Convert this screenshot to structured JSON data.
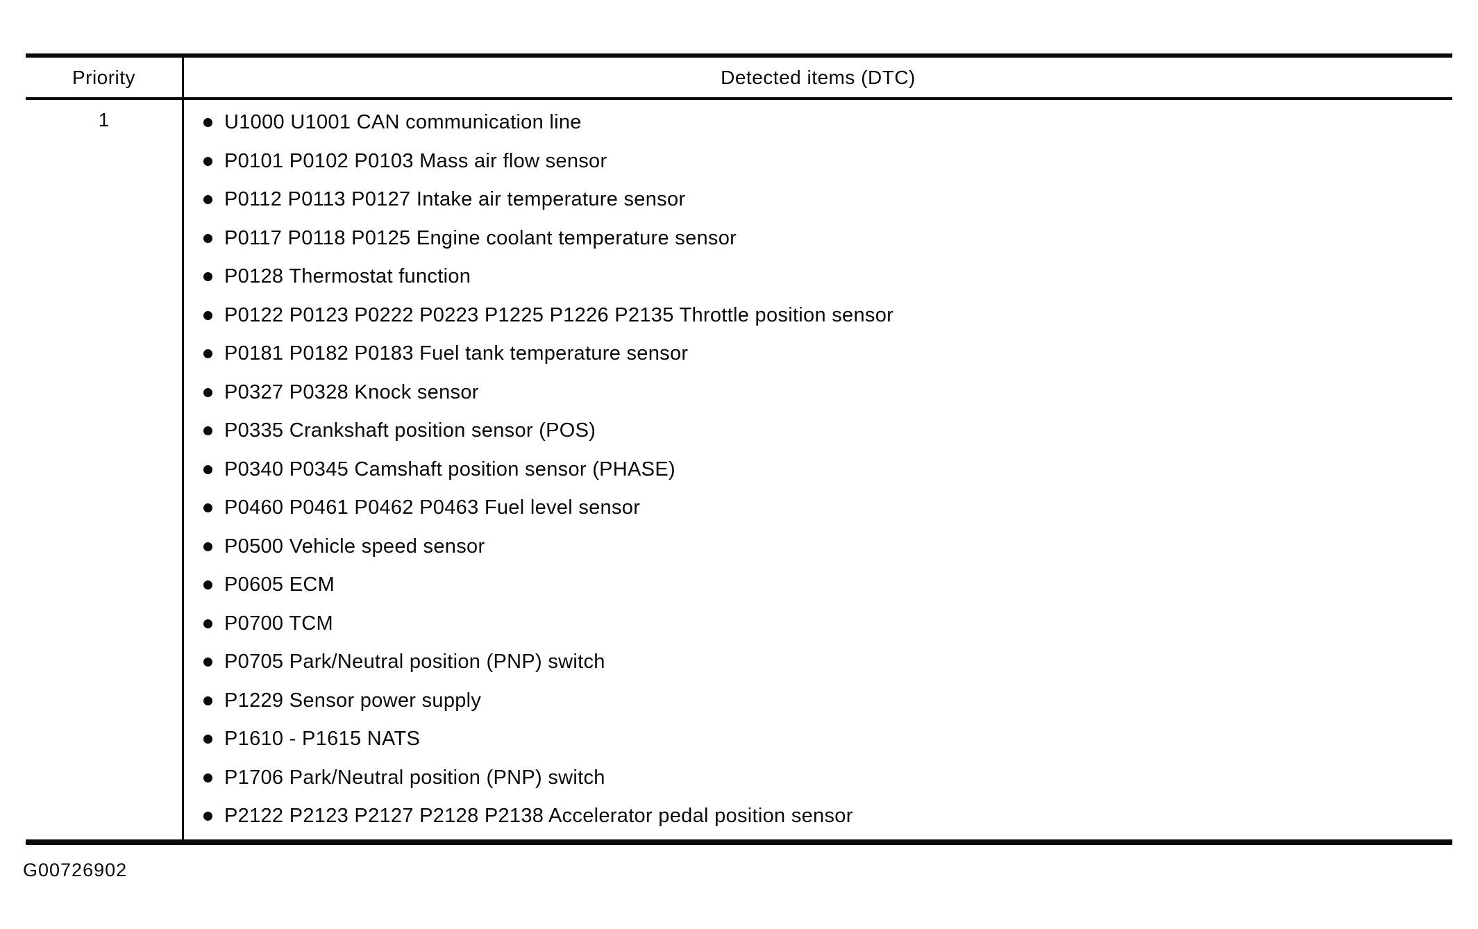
{
  "colors": {
    "background": "#ffffff",
    "text": "#0a0a0a",
    "border": "#0a0a0a"
  },
  "table": {
    "priority_header": "Priority",
    "detected_items_header": "Detected items (DTC)",
    "rows": [
      {
        "priority": "1",
        "items": [
          "U1000 U1001 CAN communication line",
          "P0101 P0102 P0103 Mass air flow sensor",
          "P0112 P0113 P0127 Intake air temperature sensor",
          "P0117 P0118 P0125 Engine coolant temperature sensor",
          "P0128 Thermostat function",
          "P0122 P0123 P0222 P0223 P1225 P1226 P2135 Throttle position sensor",
          "P0181 P0182 P0183 Fuel tank temperature sensor",
          "P0327 P0328 Knock sensor",
          "P0335 Crankshaft position sensor (POS)",
          "P0340 P0345 Camshaft position sensor (PHASE)",
          "P0460 P0461 P0462 P0463 Fuel level sensor",
          "P0500 Vehicle speed sensor",
          "P0605 ECM",
          "P0700 TCM",
          "P0705 Park/Neutral position (PNP) switch",
          "P1229 Sensor power supply",
          "P1610 - P1615 NATS",
          "P1706 Park/Neutral position (PNP) switch",
          "P2122 P2123 P2127 P2128 P2138 Accelerator pedal position sensor"
        ]
      }
    ],
    "figure_code": "G00726902"
  }
}
